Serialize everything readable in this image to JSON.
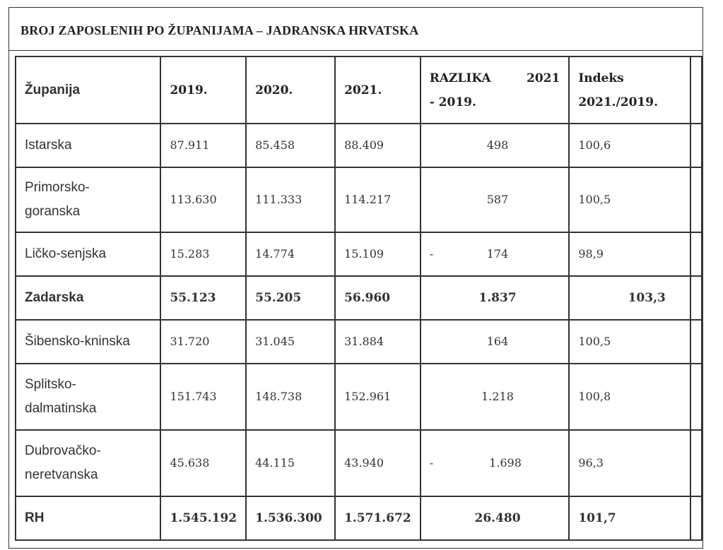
{
  "title": "BROJ ZAPOSLENIH PO ŽUPANIJAMA – JADRANSKA HRVATSKA",
  "table": {
    "headers": {
      "county": "Županija",
      "y2019": "2019.",
      "y2020": "2020.",
      "y2021": "2021.",
      "diff_line1_a": "RAZLIKA",
      "diff_line1_b": "2021",
      "diff_line2": "- 2019.",
      "index_line1": "Indeks",
      "index_line2": "2021./2019."
    },
    "rows": [
      {
        "county": "Istarska",
        "y2019": "87.911",
        "y2020": "85.458",
        "y2021": "88.409",
        "diff_sign": "",
        "diff": "498",
        "index": "100,6"
      },
      {
        "county_line1": "Primorsko-",
        "county_line2": "goranska",
        "y2019": "113.630",
        "y2020": "111.333",
        "y2021": "114.217",
        "diff_sign": "",
        "diff": "587",
        "index": "100,5"
      },
      {
        "county": "Ličko-senjska",
        "y2019": "15.283",
        "y2020": "14.774",
        "y2021": "15.109",
        "diff_sign": "-",
        "diff": "174",
        "index": "98,9"
      },
      {
        "county": "Zadarska",
        "y2019": "55.123",
        "y2020": "55.205",
        "y2021": "56.960",
        "diff_sign": "",
        "diff": "1.837",
        "index": "103,3"
      },
      {
        "county": "Šibensko-kninska",
        "y2019": "31.720",
        "y2020": "31.045",
        "y2021": "31.884",
        "diff_sign": "",
        "diff": "164",
        "index": "100,5"
      },
      {
        "county_line1": "Splitsko-",
        "county_line2": "dalmatinska",
        "y2019": "151.743",
        "y2020": "148.738",
        "y2021": "152.961",
        "diff_sign": "",
        "diff": "1.218",
        "index": "100,8"
      },
      {
        "county_line1": "Dubrovačko-",
        "county_line2": "neretvanska",
        "y2019": "45.638",
        "y2020": "44.115",
        "y2021": "43.940",
        "diff_sign": "-",
        "diff": "1.698",
        "index": "96,3"
      },
      {
        "county": "RH",
        "y2019": "1.545.192",
        "y2020": "1.536.300",
        "y2021": "1.571.672",
        "diff_sign": "",
        "diff": "26.480",
        "index": "101,7"
      }
    ]
  }
}
